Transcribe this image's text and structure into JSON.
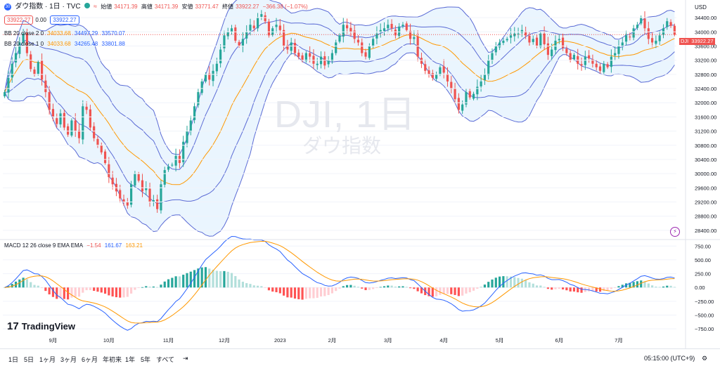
{
  "header": {
    "symbol_icon": "circle-30-icon",
    "title": "ダウ指数 · 1日 · TVC",
    "ohlc_labels": [
      "始値",
      "高値",
      "安値",
      "終値"
    ],
    "ohlc_values": [
      "34171.39",
      "34171.39",
      "33771.47",
      "33922.27"
    ],
    "change": "−366.38 (−1.07%)",
    "sell_price": "33922.27",
    "spread": "0.00",
    "buy_price": "33922.27"
  },
  "indicators": {
    "bb2": {
      "label": "BB 20 close 2 0",
      "values": [
        "34033.68",
        "34497.29",
        "33570.07"
      ]
    },
    "bb1": {
      "label": "BB 20 close 1 0",
      "values": [
        "34033.68",
        "34265.48",
        "33801.88"
      ]
    },
    "macd": {
      "label": "MACD 12 26 close 9 EMA EMA",
      "values": [
        "−1.54",
        "161.67",
        "163.21"
      ]
    }
  },
  "watermark": {
    "symbol": "DJI, 1日",
    "name": "ダウ指数"
  },
  "currency": "USD",
  "price_tag": {
    "symbol": "DJI",
    "value": "33922.27"
  },
  "time_axis": {
    "labels": [
      "9月",
      "10月",
      "11月",
      "12月",
      "2023",
      "2月",
      "3月",
      "4月",
      "5月",
      "6月",
      "7月"
    ]
  },
  "toolbar": {
    "timeframes": [
      "1日",
      "5日",
      "1ヶ月",
      "3ヶ月",
      "6ヶ月",
      "年初来",
      "1年",
      "5年",
      "すべて"
    ],
    "time": "05:15:00 (UTC+9)",
    "logo": "TradingView"
  },
  "colors": {
    "up": "#26a69a",
    "down": "#ef5350",
    "basis": "#ff9800",
    "bands": "#5b6bd5",
    "fill": "#e3f2fd",
    "macd": "#2962ff",
    "signal": "#ff9800",
    "hist_pos_strong": "#26a69a",
    "hist_pos_weak": "#b2dfdb",
    "hist_neg_strong": "#ff5252",
    "hist_neg_weak": "#ffcdd2"
  },
  "chart_data": [
    {
      "type": "candlestick",
      "series_name": "DJI",
      "ylim": [
        28200,
        34700
      ],
      "y_ticks": [
        28400,
        28800,
        29200,
        29600,
        30000,
        30400,
        30800,
        31200,
        31600,
        32000,
        32400,
        32800,
        33200,
        33600,
        34000,
        34400
      ],
      "close": [
        32300,
        32700,
        33100,
        33400,
        33700,
        33950,
        33400,
        32950,
        32800,
        33150,
        32650,
        32300,
        31800,
        31600,
        31400,
        31700,
        31300,
        31100,
        31500,
        31200,
        31000,
        31900,
        31800,
        31300,
        31000,
        30800,
        30600,
        30300,
        29900,
        29700,
        29500,
        29300,
        29200,
        29100,
        29700,
        30000,
        29800,
        29500,
        29600,
        29200,
        29250,
        29000,
        29700,
        30100,
        30200,
        30250,
        30500,
        30300,
        30900,
        31200,
        31500,
        31900,
        32300,
        32600,
        32800,
        32650,
        32900,
        33100,
        33500,
        33900,
        34000,
        34100,
        33750,
        33600,
        33800,
        34000,
        34200,
        34100,
        34400,
        34500,
        34300,
        33900,
        34100,
        34200,
        34050,
        33600,
        33500,
        33700,
        33400,
        33300,
        33200,
        33400,
        33300,
        33100,
        33100,
        33300,
        33050,
        33200,
        33400,
        33700,
        33900,
        34200,
        34100,
        34000,
        33800,
        33700,
        33400,
        33300,
        33600,
        33800,
        33950,
        34050,
        34100,
        34200,
        34100,
        33900,
        34150,
        34200,
        34050,
        33800,
        33850,
        33300,
        33100,
        32900,
        32800,
        32700,
        32800,
        33000,
        32850,
        32600,
        32400,
        32100,
        31800,
        31950,
        32300,
        32150,
        32250,
        32450,
        32600,
        32800,
        33200,
        33400,
        33600,
        33700,
        33750,
        33800,
        33900,
        33950,
        33950,
        34050,
        33900,
        33700,
        33800,
        33600,
        33950,
        33650,
        33350,
        33500,
        33750,
        33800,
        33550,
        33400,
        33200,
        33350,
        33100,
        33050,
        33300,
        33250,
        33100,
        33000,
        32900,
        33100,
        33000,
        33300,
        33400,
        33600,
        33700,
        33900,
        33850,
        34100,
        34200,
        34400,
        34100,
        33800,
        33700,
        33750,
        33900,
        34100,
        34300,
        34171,
        33922
      ],
      "bollinger": {
        "period": 20,
        "bands": [
          1,
          2
        ]
      },
      "last_price": 33922.27
    },
    {
      "type": "macd",
      "ylim": [
        -875,
        830
      ],
      "y_ticks": [
        750,
        500,
        250,
        0,
        -250,
        -500,
        -750
      ],
      "params": {
        "fast": 12,
        "slow": 26,
        "signal": 9
      }
    }
  ]
}
